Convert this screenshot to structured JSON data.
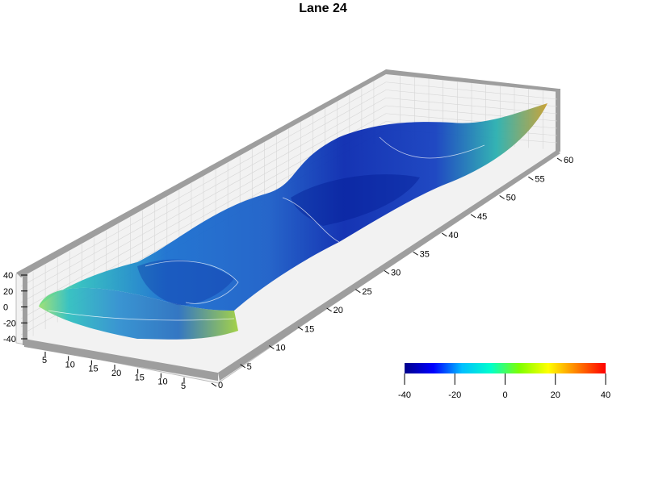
{
  "chart_data": {
    "type": "surface3d",
    "title": "Lane 24",
    "z_axis": {
      "ticks": [
        "40",
        "20",
        "0",
        "-20",
        "-40"
      ],
      "range": [
        -40,
        40
      ]
    },
    "x_axis": {
      "ticks": [
        "5",
        "10",
        "15",
        "20",
        "15",
        "10",
        "5"
      ]
    },
    "y_axis": {
      "ticks": [
        "0",
        "5",
        "10",
        "15",
        "20",
        "25",
        "30",
        "35",
        "40",
        "45",
        "50",
        "55",
        "60"
      ],
      "range": [
        0,
        60
      ]
    },
    "colorbar": {
      "ticks": [
        "-40",
        "-20",
        "0",
        "20",
        "40"
      ],
      "range": [
        -40,
        40
      ],
      "colors": [
        "#00008b",
        "#0000ff",
        "#00bfff",
        "#00ffcc",
        "#7fff00",
        "#ffff00",
        "#ff8000",
        "#ff0000"
      ]
    },
    "grid": true
  }
}
